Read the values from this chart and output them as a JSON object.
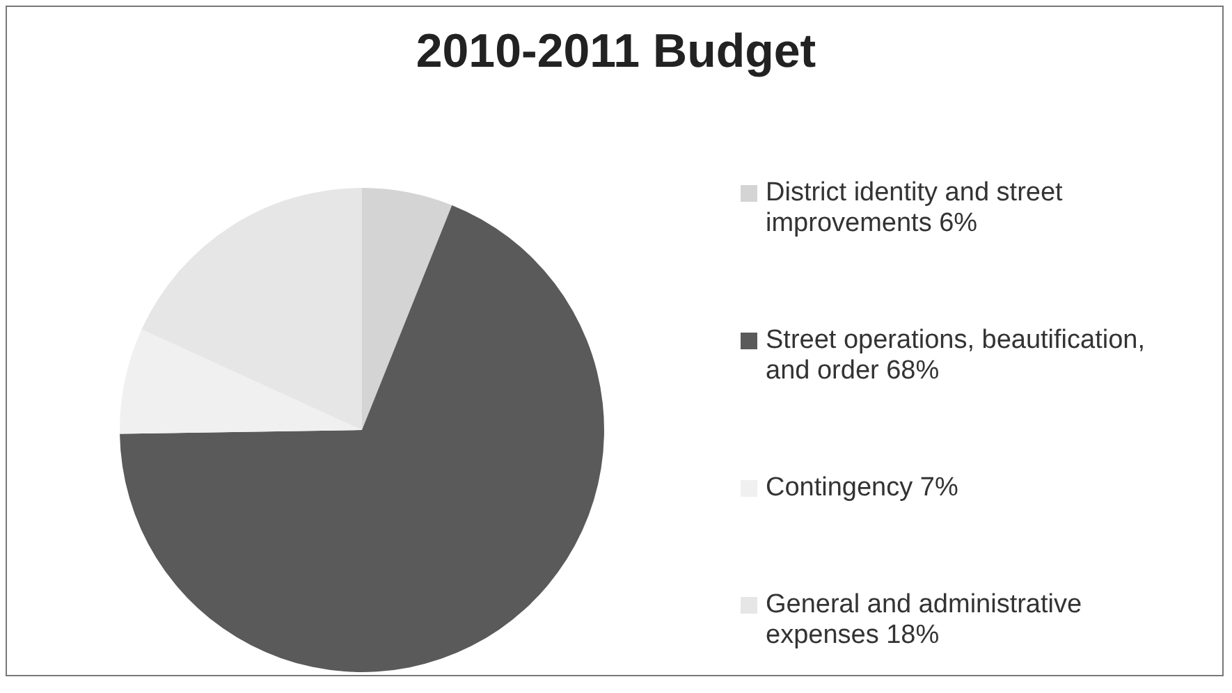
{
  "chart_data": {
    "type": "pie",
    "title": "2010-2011 Budget",
    "categories": [
      "District identity and street improvements 6%",
      "Street operations, beautification, and order 68%",
      "Contingency 7%",
      "General and administrative expenses 18%"
    ],
    "values": [
      6,
      68,
      7,
      18
    ],
    "colors": [
      "#d4d4d4",
      "#5a5a5a",
      "#f0f0f0",
      "#e6e6e6"
    ],
    "legend": "right"
  }
}
